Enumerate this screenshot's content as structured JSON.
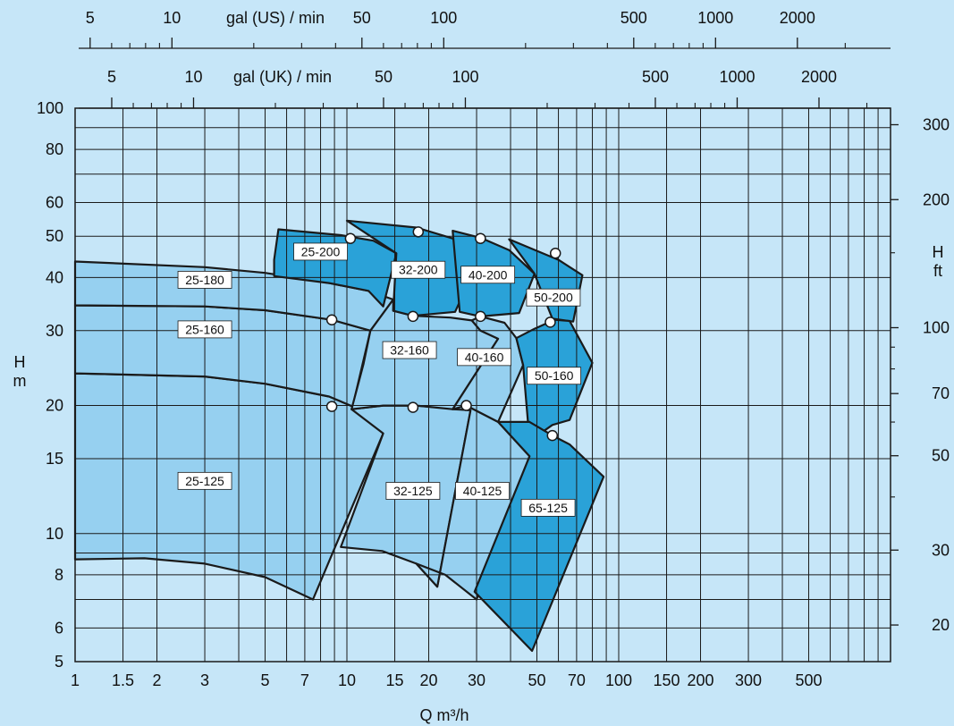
{
  "chart_data": {
    "type": "area",
    "title": "",
    "colors": {
      "background": "#c6e6f8",
      "plot_background": "#c6e6f8",
      "grid": "#1a1a1a",
      "light_region": "#96d0f0",
      "dark_region": "#2aa2d8",
      "outline": "#1a1a1a",
      "label_box": "#ffffff",
      "marker_fill": "#ffffff"
    },
    "x_axis": {
      "label": "Q  m³/h",
      "scale": "log",
      "range": [
        1,
        1000
      ],
      "tick_labels": [
        {
          "value": 1,
          "label": "1"
        },
        {
          "value": 1.5,
          "label": "1.5"
        },
        {
          "value": 2,
          "label": "2"
        },
        {
          "value": 3,
          "label": "3"
        },
        {
          "value": 5,
          "label": "5"
        },
        {
          "value": 7,
          "label": "7"
        },
        {
          "value": 10,
          "label": "10"
        },
        {
          "value": 15,
          "label": "15"
        },
        {
          "value": 20,
          "label": "20"
        },
        {
          "value": 30,
          "label": "30"
        },
        {
          "value": 50,
          "label": "50"
        },
        {
          "value": 70,
          "label": "70"
        },
        {
          "value": 100,
          "label": "100"
        },
        {
          "value": 150,
          "label": "150"
        },
        {
          "value": 200,
          "label": "200"
        },
        {
          "value": 300,
          "label": "300"
        },
        {
          "value": 500,
          "label": "500"
        }
      ],
      "gridlines": [
        1,
        1.5,
        2,
        3,
        4,
        5,
        6,
        7,
        8,
        9,
        10,
        15,
        20,
        30,
        40,
        50,
        60,
        70,
        80,
        90,
        100,
        150,
        200,
        300,
        400,
        500,
        600,
        700,
        800,
        900,
        1000
      ]
    },
    "y_axis": {
      "label_line1": "H",
      "label_line2": "m",
      "scale": "log",
      "range": [
        5,
        100
      ],
      "tick_labels": [
        {
          "value": 5,
          "label": "5"
        },
        {
          "value": 6,
          "label": "6"
        },
        {
          "value": 8,
          "label": "8"
        },
        {
          "value": 10,
          "label": "10"
        },
        {
          "value": 15,
          "label": "15"
        },
        {
          "value": 20,
          "label": "20"
        },
        {
          "value": 30,
          "label": "30"
        },
        {
          "value": 40,
          "label": "40"
        },
        {
          "value": 50,
          "label": "50"
        },
        {
          "value": 60,
          "label": "60"
        },
        {
          "value": 80,
          "label": "80"
        },
        {
          "value": 100,
          "label": "100"
        }
      ],
      "gridlines": [
        5,
        6,
        7,
        8,
        9,
        10,
        15,
        20,
        30,
        40,
        50,
        60,
        70,
        80,
        90,
        100
      ]
    },
    "right_axis": {
      "label_line1": "H",
      "label_line2": "ft",
      "tick_labels": [
        {
          "value_ft": 20,
          "label": "20"
        },
        {
          "value_ft": 30,
          "label": "30"
        },
        {
          "value_ft": 50,
          "label": "50"
        },
        {
          "value_ft": 70,
          "label": "70"
        },
        {
          "value_ft": 100,
          "label": "100"
        },
        {
          "value_ft": 200,
          "label": "200"
        },
        {
          "value_ft": 300,
          "label": "300"
        }
      ],
      "minor_ticks_ft": [
        40,
        60,
        80,
        90,
        150
      ]
    },
    "top_axis_us": {
      "label": "gal (US) / min",
      "tick_labels": [
        {
          "value": 5,
          "label": "5"
        },
        {
          "value": 10,
          "label": "10"
        },
        {
          "value": 50,
          "label": "50"
        },
        {
          "value": 100,
          "label": "100"
        },
        {
          "value": 500,
          "label": "500"
        },
        {
          "value": 1000,
          "label": "1000"
        },
        {
          "value": 2000,
          "label": "2000"
        }
      ],
      "minor_ticks": [
        6,
        7,
        8,
        9,
        20,
        30,
        40,
        60,
        70,
        80,
        90,
        200,
        300,
        400,
        600,
        700,
        800,
        900,
        3000
      ]
    },
    "top_axis_uk": {
      "label": "gal (UK) / min",
      "tick_labels": [
        {
          "value": 5,
          "label": "5"
        },
        {
          "value": 10,
          "label": "10"
        },
        {
          "value": 50,
          "label": "50"
        },
        {
          "value": 100,
          "label": "100"
        },
        {
          "value": 500,
          "label": "500"
        },
        {
          "value": 1000,
          "label": "1000"
        },
        {
          "value": 2000,
          "label": "2000"
        }
      ],
      "minor_ticks": [
        6,
        7,
        8,
        9,
        20,
        30,
        40,
        60,
        70,
        80,
        90,
        200,
        300,
        400,
        600,
        700,
        800,
        900,
        3000
      ]
    },
    "regions": [
      {
        "name": "25-125",
        "shade": "light",
        "polygon": [
          [
            1,
            8.7
          ],
          [
            1.8,
            8.75
          ],
          [
            3,
            8.5
          ],
          [
            5,
            7.9
          ],
          [
            7.5,
            7.0
          ],
          [
            13.6,
            17.2
          ],
          [
            10.5,
            19.9
          ],
          [
            8.6,
            21.0
          ],
          [
            5,
            22.5
          ],
          [
            3,
            23.4
          ],
          [
            1,
            23.8
          ]
        ],
        "label_at": [
          3.0,
          13.3
        ],
        "marker": [
          8.8,
          19.9
        ]
      },
      {
        "name": "25-160",
        "shade": "light",
        "polygon": [
          [
            1,
            23.8
          ],
          [
            3,
            23.4
          ],
          [
            5,
            22.5
          ],
          [
            8.6,
            21.0
          ],
          [
            10.5,
            19.9
          ],
          [
            12.2,
            30.0
          ],
          [
            8.8,
            31.8
          ],
          [
            5,
            33.5
          ],
          [
            3,
            34.2
          ],
          [
            1,
            34.4
          ]
        ],
        "label_at": [
          3.0,
          30.2
        ],
        "marker": [
          8.8,
          31.8
        ]
      },
      {
        "name": "25-180",
        "shade": "light",
        "polygon": [
          [
            1,
            34.4
          ],
          [
            3,
            34.2
          ],
          [
            5,
            33.5
          ],
          [
            8.8,
            31.8
          ],
          [
            12.2,
            30.0
          ],
          [
            14.8,
            35.5
          ],
          [
            12,
            37.2
          ],
          [
            8.6,
            38.8
          ],
          [
            5,
            41
          ],
          [
            3,
            42.3
          ],
          [
            1,
            43.6
          ]
        ],
        "label_at": [
          3.0,
          39.5
        ]
      },
      {
        "name": "32-125",
        "shade": "light",
        "polygon": [
          [
            9.5,
            9.3
          ],
          [
            13.5,
            9.1
          ],
          [
            18,
            8.5
          ],
          [
            21.5,
            7.5
          ],
          [
            28.5,
            19.5
          ],
          [
            18,
            20.0
          ],
          [
            13.6,
            20.0
          ],
          [
            10.4,
            19.6
          ],
          [
            13.6,
            17.2
          ]
        ],
        "label_at": [
          17.5,
          12.6
        ],
        "marker": [
          17.5,
          19.8
        ]
      },
      {
        "name": "32-160",
        "shade": "light",
        "polygon": [
          [
            10.4,
            19.6
          ],
          [
            13.6,
            20.0
          ],
          [
            18,
            20.0
          ],
          [
            24.5,
            19.6
          ],
          [
            36,
            28.7
          ],
          [
            31,
            30.0
          ],
          [
            28.8,
            31.7
          ],
          [
            24,
            32.2
          ],
          [
            17.5,
            32.5
          ],
          [
            14.8,
            33.4
          ],
          [
            14.8,
            35.5
          ],
          [
            12.2,
            30.0
          ],
          [
            11.5,
            25.0
          ]
        ],
        "label_at": [
          17.0,
          27.0
        ],
        "marker": [
          17.5,
          32.4
        ]
      },
      {
        "name": "40-125",
        "shade": "light",
        "polygon": [
          [
            18,
            8.5
          ],
          [
            23,
            8.0
          ],
          [
            30,
            7.0
          ],
          [
            47,
            15.2
          ],
          [
            36,
            18.3
          ],
          [
            27.5,
            20.0
          ],
          [
            24.5,
            19.6
          ],
          [
            28.5,
            19.5
          ],
          [
            21.5,
            7.5
          ]
        ],
        "label_at": [
          31.5,
          12.6
        ],
        "marker": [
          27.5,
          20.0
        ]
      },
      {
        "name": "40-160",
        "shade": "light",
        "polygon": [
          [
            24.5,
            19.6
          ],
          [
            27.5,
            20.0
          ],
          [
            36,
            18.3
          ],
          [
            44.5,
            24.9
          ],
          [
            42,
            28.8
          ],
          [
            38,
            31.3
          ],
          [
            31,
            32.4
          ],
          [
            28.8,
            31.7
          ],
          [
            31,
            30.0
          ],
          [
            36,
            28.7
          ]
        ],
        "label_at": [
          32.0,
          26.0
        ],
        "marker": [
          31,
          32.4
        ]
      },
      {
        "name": "25-200",
        "shade": "dark",
        "polygon": [
          [
            5.6,
            51.9
          ],
          [
            9.5,
            50.3
          ],
          [
            12.5,
            48.8
          ],
          [
            15.2,
            45.6
          ],
          [
            13.6,
            34.2
          ],
          [
            12,
            37.2
          ],
          [
            8.6,
            38.8
          ],
          [
            5.4,
            40.3
          ],
          [
            5.4,
            44.0
          ]
        ],
        "label_at": [
          8.0,
          46.0
        ],
        "marker": [
          10.3,
          49.4
        ]
      },
      {
        "name": "32-200",
        "shade": "dark",
        "polygon": [
          [
            10,
            54.4
          ],
          [
            18,
            52.4
          ],
          [
            24.5,
            49.4
          ],
          [
            29.7,
            42.2
          ],
          [
            25,
            33.2
          ],
          [
            17.5,
            32.5
          ],
          [
            14.8,
            33.4
          ],
          [
            15.2,
            45.6
          ]
        ],
        "label_at": [
          18.3,
          41.7
        ],
        "marker": [
          18.3,
          51.2
        ]
      },
      {
        "name": "40-200",
        "shade": "dark",
        "polygon": [
          [
            24.5,
            51.5
          ],
          [
            31,
            49.6
          ],
          [
            39.5,
            46.4
          ],
          [
            49,
            40.8
          ],
          [
            43,
            33.0
          ],
          [
            31,
            32.4
          ],
          [
            26,
            33.2
          ]
        ],
        "label_at": [
          33.0,
          40.6
        ],
        "marker": [
          31,
          49.4
        ]
      },
      {
        "name": "50-200",
        "shade": "dark",
        "polygon": [
          [
            39.5,
            49.2
          ],
          [
            60,
            44.0
          ],
          [
            73.5,
            40.5
          ],
          [
            68,
            31.5
          ],
          [
            57,
            32.0
          ],
          [
            49,
            40.8
          ]
        ],
        "label_at": [
          57.5,
          35.9
        ],
        "marker": [
          58.5,
          45.6
        ]
      },
      {
        "name": "50-160",
        "shade": "dark",
        "polygon": [
          [
            42,
            28.8
          ],
          [
            49,
            30.3
          ],
          [
            58,
            31.8
          ],
          [
            66,
            31.6
          ],
          [
            80,
            25.2
          ],
          [
            66,
            18.5
          ],
          [
            57,
            18.0
          ],
          [
            47,
            16.5
          ],
          [
            44.5,
            24.9
          ]
        ],
        "label_at": [
          57.8,
          23.5
        ],
        "marker": [
          56,
          31.4
        ]
      },
      {
        "name": "65-125",
        "shade": "dark",
        "polygon": [
          [
            36,
            18.3
          ],
          [
            47,
            18.3
          ],
          [
            57,
            17.0
          ],
          [
            66,
            16.2
          ],
          [
            88,
            13.6
          ],
          [
            48,
            5.3
          ],
          [
            29.5,
            7.3
          ],
          [
            47,
            15.2
          ]
        ],
        "label_at": [
          55.0,
          11.5
        ],
        "marker": [
          57,
          17.0
        ]
      }
    ]
  }
}
